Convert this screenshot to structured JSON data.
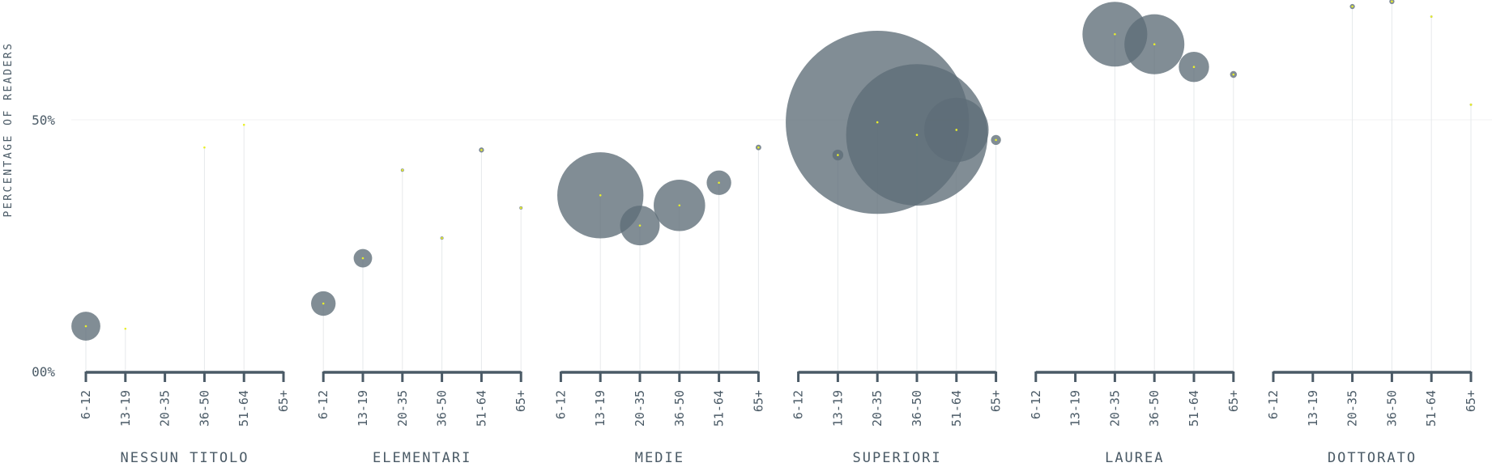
{
  "chart_data": {
    "type": "scatter",
    "variant": "bubble-lollipop",
    "title": "",
    "ylabel": "PERCENTAGE OF READERS",
    "y_ticks": [
      {
        "value": 0,
        "label": "00%"
      },
      {
        "value": 50,
        "label": "50%"
      }
    ],
    "ylim": [
      0,
      75
    ],
    "grid": "horizontal at 50%",
    "categories": [
      "6-12",
      "13-19",
      "20-35",
      "36-50",
      "51-64",
      "65+"
    ],
    "colors": {
      "bubble": "#5d6d77",
      "dot": "#e8ef2a",
      "axis": "#4a5a66",
      "text": "#4a5a66",
      "stem": "#e6e9eb"
    },
    "groups": [
      {
        "name": "NESSUN TITOLO",
        "points": [
          {
            "age": "6-12",
            "value": 9,
            "size": 320
          },
          {
            "age": "13-19",
            "value": 8.5,
            "size": 0
          },
          {
            "age": "20-35",
            "value": null,
            "size": 0
          },
          {
            "age": "36-50",
            "value": 44.5,
            "size": 0
          },
          {
            "age": "51-64",
            "value": 49,
            "size": 0
          },
          {
            "age": "65+",
            "value": null,
            "size": 0
          }
        ]
      },
      {
        "name": "ELEMENTARI",
        "points": [
          {
            "age": "6-12",
            "value": 13.5,
            "size": 230
          },
          {
            "age": "13-19",
            "value": 22.5,
            "size": 130
          },
          {
            "age": "20-35",
            "value": 40,
            "size": 4
          },
          {
            "age": "36-50",
            "value": 26.5,
            "size": 4
          },
          {
            "age": "51-64",
            "value": 44,
            "size": 10
          },
          {
            "age": "65+",
            "value": 32.5,
            "size": 4
          }
        ]
      },
      {
        "name": "MEDIE",
        "points": [
          {
            "age": "6-12",
            "value": null,
            "size": 0
          },
          {
            "age": "13-19",
            "value": 35,
            "size": 2830
          },
          {
            "age": "20-35",
            "value": 29,
            "size": 600
          },
          {
            "age": "36-50",
            "value": 33,
            "size": 1010
          },
          {
            "age": "51-64",
            "value": 37.5,
            "size": 230
          },
          {
            "age": "65+",
            "value": 44.5,
            "size": 12
          }
        ]
      },
      {
        "name": "SUPERIORI",
        "points": [
          {
            "age": "6-12",
            "value": null,
            "size": 0
          },
          {
            "age": "13-19",
            "value": 43,
            "size": 45
          },
          {
            "age": "20-35",
            "value": 49.5,
            "size": 12800
          },
          {
            "age": "36-50",
            "value": 47,
            "size": 7640
          },
          {
            "age": "51-64",
            "value": 48,
            "size": 1580
          },
          {
            "age": "65+",
            "value": 46,
            "size": 38
          }
        ]
      },
      {
        "name": "LAUREA",
        "points": [
          {
            "age": "6-12",
            "value": null,
            "size": 0
          },
          {
            "age": "13-19",
            "value": null,
            "size": 0
          },
          {
            "age": "20-35",
            "value": 67,
            "size": 1600
          },
          {
            "age": "36-50",
            "value": 65,
            "size": 1370
          },
          {
            "age": "51-64",
            "value": 60.5,
            "size": 350
          },
          {
            "age": "65+",
            "value": 59,
            "size": 18
          }
        ]
      },
      {
        "name": "DOTTORATO",
        "points": [
          {
            "age": "6-12",
            "value": null,
            "size": 0
          },
          {
            "age": "13-19",
            "value": null,
            "size": 0
          },
          {
            "age": "20-35",
            "value": 72.5,
            "size": 10
          },
          {
            "age": "36-50",
            "value": 73.5,
            "size": 10
          },
          {
            "age": "51-64",
            "value": 70.5,
            "size": 2
          },
          {
            "age": "65+",
            "value": 53,
            "size": 2
          }
        ]
      }
    ]
  }
}
